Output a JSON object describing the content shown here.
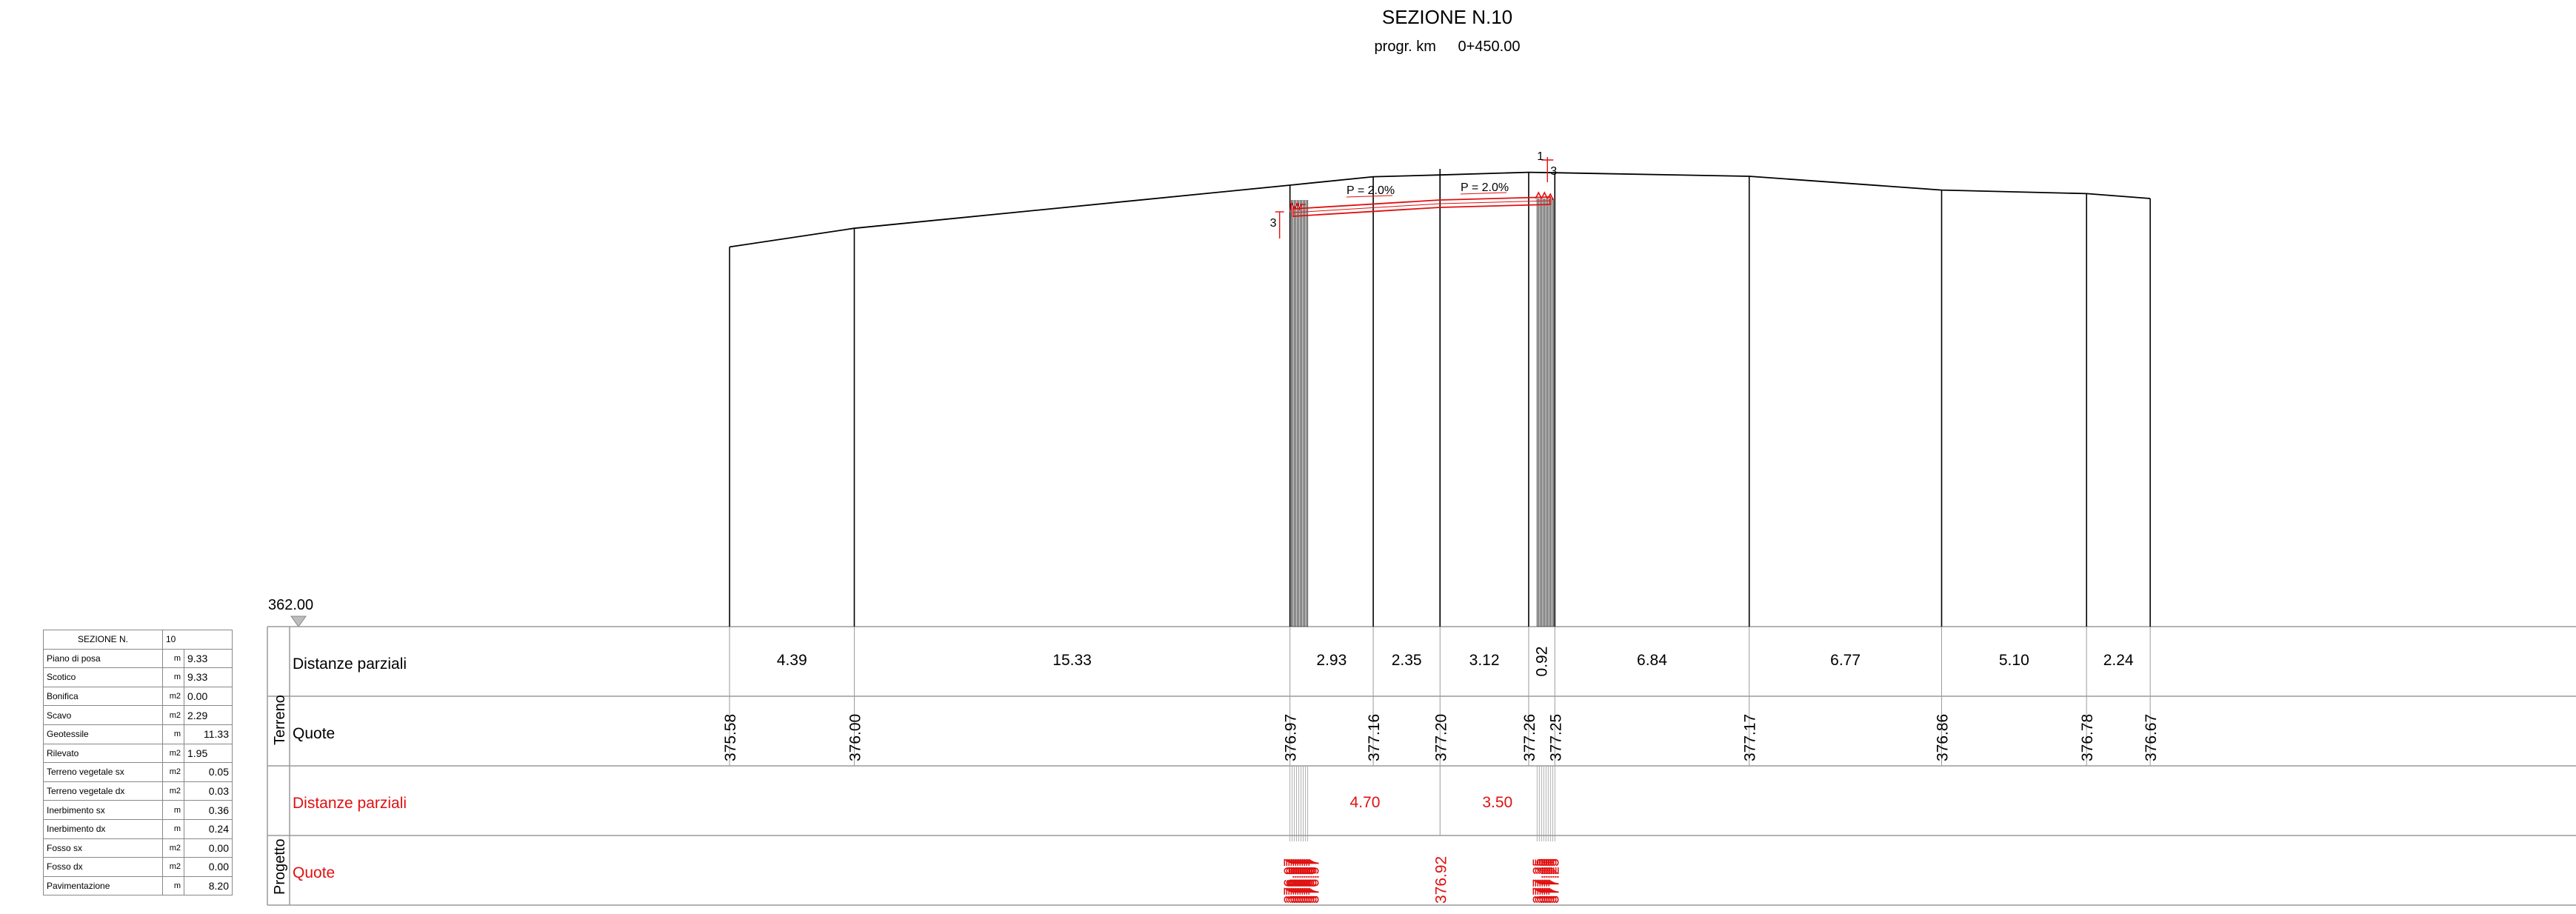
{
  "title": "SEZIONE N.10",
  "progr_label": "progr. km",
  "progr_value": "0+450.00",
  "reference_elevation": "362.00",
  "colors": {
    "line": "#000000",
    "project": "#e01010",
    "grid": "#9a9a9a"
  },
  "row_labels": {
    "terreno_distanze": "Distanze parziali",
    "terreno_quote": "Quote",
    "progetto_distanze": "Distanze parziali",
    "progetto_quote": "Quote",
    "group_terreno": "Terreno",
    "group_progetto": "Progetto"
  },
  "terrain_points": [
    {
      "offset": 0.0,
      "elev": 375.58,
      "label": "375.58"
    },
    {
      "offset": 4.39,
      "elev": 376.0,
      "label": "376.00"
    },
    {
      "offset": 19.72,
      "elev": 376.97,
      "label": "376.97"
    },
    {
      "offset": 22.65,
      "elev": 377.16,
      "label": "377.16"
    },
    {
      "offset": 25.0,
      "elev": 377.2,
      "label": "377.20"
    },
    {
      "offset": 28.12,
      "elev": 377.26,
      "label": "377.26"
    },
    {
      "offset": 29.04,
      "elev": 377.25,
      "label": "377.25"
    },
    {
      "offset": 35.88,
      "elev": 377.17,
      "label": "377.17"
    },
    {
      "offset": 42.65,
      "elev": 376.86,
      "label": "376.86"
    },
    {
      "offset": 47.75,
      "elev": 376.78,
      "label": "376.78"
    },
    {
      "offset": 49.99,
      "elev": 376.67,
      "label": "376.67"
    }
  ],
  "terrain_partial_distances": [
    "4.39",
    "15.33",
    "2.93",
    "2.35",
    "3.12",
    "0.92",
    "6.84",
    "6.77",
    "5.10",
    "2.24"
  ],
  "project": {
    "axis_offset": 25.0,
    "left_edge_offset": 19.72,
    "right_edge_offset": 29.04,
    "partial_distances": [
      "4.70",
      "3.50"
    ],
    "axis_quote": "376.92",
    "slope_left": "P = 2.0%",
    "slope_right": "P = 2.0%",
    "scarp_ratio_left": "3",
    "scarp_ratio_right_h": "1",
    "scarp_ratio_right_v": "3"
  },
  "summary": {
    "header_label": "SEZIONE N.",
    "header_value": "10",
    "rows": [
      {
        "label": "Piano di posa",
        "unit": "m",
        "value": "9.33",
        "align": "left"
      },
      {
        "label": "Scotico",
        "unit": "m",
        "value": "9.33",
        "align": "left"
      },
      {
        "label": "Bonifica",
        "unit": "m2",
        "value": "0.00",
        "align": "left"
      },
      {
        "label": "Scavo",
        "unit": "m2",
        "value": "2.29",
        "align": "left"
      },
      {
        "label": "Geotessile",
        "unit": "m",
        "value": "11.33",
        "align": "right"
      },
      {
        "label": "Rilevato",
        "unit": "m2",
        "value": "1.95",
        "align": "left"
      },
      {
        "label": "Terreno vegetale sx",
        "unit": "m2",
        "value": "0.05",
        "align": "right"
      },
      {
        "label": "Terreno vegetale dx",
        "unit": "m2",
        "value": "0.03",
        "align": "right"
      },
      {
        "label": "Inerbimento sx",
        "unit": "m",
        "value": "0.36",
        "align": "right"
      },
      {
        "label": "Inerbimento dx",
        "unit": "m",
        "value": "0.24",
        "align": "right"
      },
      {
        "label": "Fosso sx",
        "unit": "m2",
        "value": "0.00",
        "align": "right"
      },
      {
        "label": "Fosso dx",
        "unit": "m2",
        "value": "0.00",
        "align": "right"
      },
      {
        "label": "Pavimentazione",
        "unit": "m",
        "value": "8.20",
        "align": "right"
      }
    ]
  }
}
